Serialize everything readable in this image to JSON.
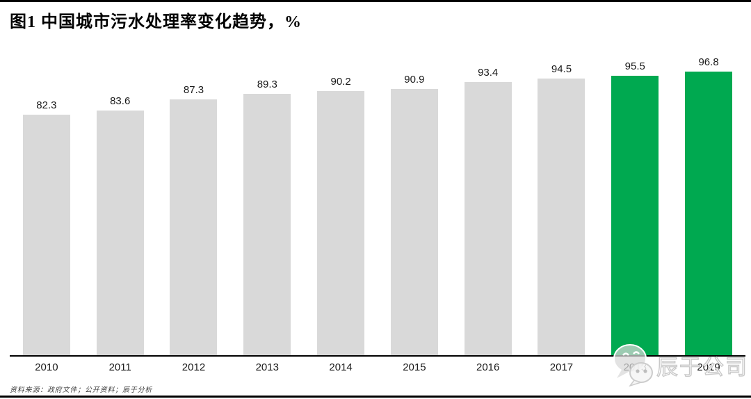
{
  "title": "图1 中国城市污水处理率变化趋势，%",
  "chart_data": {
    "type": "bar",
    "title": "图1 中国城市污水处理率变化趋势，%",
    "categories": [
      "2010",
      "2011",
      "2012",
      "2013",
      "2014",
      "2015",
      "2016",
      "2017",
      "2018",
      "2019"
    ],
    "values": [
      82.3,
      83.6,
      87.3,
      89.3,
      90.2,
      90.9,
      93.4,
      94.5,
      95.5,
      96.8
    ],
    "value_label_decimals": 1,
    "highlight_indices": [
      8,
      9
    ],
    "ylim": [
      0,
      100
    ],
    "xlabel": "",
    "ylabel": "",
    "grid": false,
    "legend_position": "none"
  },
  "colors": {
    "bar_default": "#d9d9d9",
    "bar_highlight": "#00a950",
    "axis": "#000000",
    "label_text": "#1a1a1a"
  },
  "watermark": {
    "text": "辰于公司",
    "icon": "wechat-icon"
  },
  "source_note": "资料来源：政府文件；公开资料；辰于分析"
}
